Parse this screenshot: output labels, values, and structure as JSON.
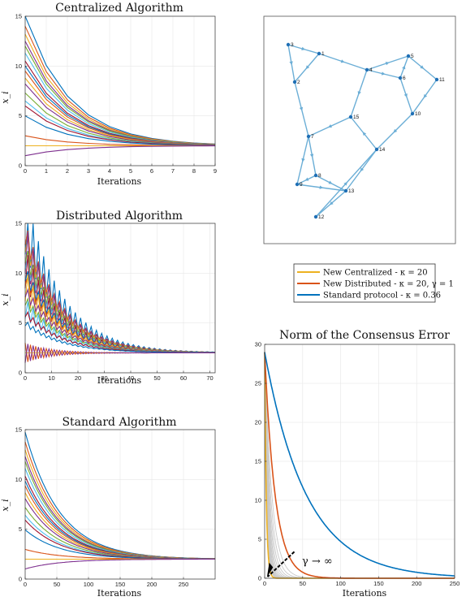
{
  "chart_data": [
    {
      "id": "centralized",
      "type": "line",
      "title": "Centralized Algorithm",
      "xlabel": "Iterations",
      "ylabel": "x_i",
      "xlim": [
        0,
        9
      ],
      "ylim": [
        0,
        15
      ],
      "xticks": [
        0,
        1,
        2,
        3,
        4,
        5,
        6,
        7,
        8,
        9
      ],
      "yticks": [
        0,
        5,
        10,
        15
      ],
      "grid": true,
      "steady_value": 2,
      "initial_values": [
        15,
        14,
        13.2,
        12.5,
        12,
        11.3,
        10.5,
        10,
        9.5,
        8.8,
        8.2,
        7.3,
        6.5,
        6,
        5,
        3,
        2,
        1
      ],
      "decay": 0.62
    },
    {
      "id": "distributed",
      "type": "line",
      "title": "Distributed Algorithm",
      "xlabel": "Iterations",
      "ylabel": "x_i",
      "xlim": [
        0,
        72
      ],
      "ylim": [
        0,
        15
      ],
      "xticks": [
        0,
        10,
        20,
        30,
        40,
        50,
        60,
        70
      ],
      "yticks": [
        0,
        5,
        10,
        15
      ],
      "grid": true,
      "steady_value": 2,
      "initial_values": [
        15,
        14,
        13.2,
        12.5,
        12,
        11.3,
        10.5,
        10,
        9.5,
        8.8,
        8.2,
        7.3,
        6.5,
        6,
        5,
        3,
        2,
        1
      ],
      "decay": 0.93
    },
    {
      "id": "standard",
      "type": "line",
      "title": "Standard Algorithm",
      "xlabel": "Iterations",
      "ylabel": "x_i",
      "xlim": [
        0,
        300
      ],
      "ylim": [
        0,
        15
      ],
      "xticks": [
        0,
        50,
        100,
        150,
        200,
        250
      ],
      "yticks": [
        0,
        5,
        10,
        15
      ],
      "grid": true,
      "steady_value": 2,
      "initial_values": [
        15,
        14,
        13.2,
        12.5,
        12,
        11.3,
        10.5,
        10,
        9.5,
        8.8,
        8.2,
        7.3,
        6.5,
        6,
        5,
        3,
        2,
        1
      ],
      "decay": 0.982
    },
    {
      "id": "norm",
      "type": "line",
      "title": "Norm of the Consensus Error",
      "xlabel": "Iterations",
      "ylabel": "",
      "xlim": [
        0,
        250
      ],
      "ylim": [
        0,
        30
      ],
      "xticks": [
        0,
        50,
        100,
        150,
        200,
        250
      ],
      "yticks": [
        0,
        5,
        10,
        15,
        20,
        25,
        30
      ],
      "grid": true,
      "series": [
        {
          "name": "New Centralized - κ = 20",
          "color": "#EDB120",
          "start": 29,
          "decay": 0.62
        },
        {
          "name": "New Distributed - κ = 20, γ = 1",
          "color": "#D95319",
          "start": 29,
          "decay": 0.93
        },
        {
          "name": "Standard protocol - κ = 0.36",
          "color": "#0072BD",
          "start": 29,
          "decay": 0.982
        }
      ],
      "gray_series_decays": [
        0.9,
        0.88,
        0.86,
        0.84,
        0.82,
        0.8,
        0.78,
        0.76,
        0.74,
        0.72,
        0.7,
        0.68
      ],
      "annotation": "γ → ∞"
    }
  ],
  "graph": {
    "nodes": [
      {
        "id": "1"
      },
      {
        "id": "2"
      },
      {
        "id": "3"
      },
      {
        "id": "4"
      },
      {
        "id": "5"
      },
      {
        "id": "6"
      },
      {
        "id": "7"
      },
      {
        "id": "8"
      },
      {
        "id": "9"
      },
      {
        "id": "10"
      },
      {
        "id": "11"
      },
      {
        "id": "12"
      },
      {
        "id": "13"
      },
      {
        "id": "14"
      },
      {
        "id": "15"
      }
    ],
    "edges": [
      [
        "3",
        "1"
      ],
      [
        "1",
        "2"
      ],
      [
        "3",
        "2"
      ],
      [
        "1",
        "4"
      ],
      [
        "4",
        "5"
      ],
      [
        "4",
        "6"
      ],
      [
        "6",
        "5"
      ],
      [
        "5",
        "11"
      ],
      [
        "6",
        "10"
      ],
      [
        "11",
        "10"
      ],
      [
        "4",
        "15"
      ],
      [
        "10",
        "14"
      ],
      [
        "14",
        "15"
      ],
      [
        "15",
        "7"
      ],
      [
        "2",
        "7"
      ],
      [
        "7",
        "8"
      ],
      [
        "7",
        "9"
      ],
      [
        "8",
        "9"
      ],
      [
        "9",
        "13"
      ],
      [
        "8",
        "13"
      ],
      [
        "13",
        "12"
      ],
      [
        "14",
        "13"
      ],
      [
        "12",
        "14"
      ]
    ],
    "edge_color": "#6BAED6",
    "node_color": "#1F6FB5"
  },
  "legend": {
    "entries": [
      {
        "label": "New Centralized - κ = 20",
        "color": "#EDB120"
      },
      {
        "label": "New Distributed - κ = 20, γ = 1",
        "color": "#D95319"
      },
      {
        "label": "Standard protocol - κ = 0.36",
        "color": "#0072BD"
      }
    ]
  },
  "palette": [
    "#0072BD",
    "#D95319",
    "#EDB120",
    "#7E2F8E",
    "#77AC30",
    "#4DBEEE",
    "#A2142F"
  ]
}
